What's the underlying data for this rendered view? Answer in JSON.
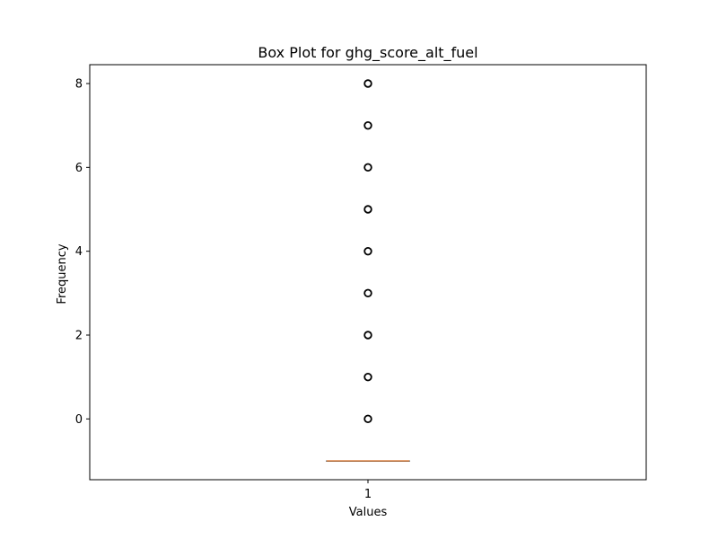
{
  "chart_data": {
    "type": "box",
    "title": "Box Plot for ghg_score_alt_fuel",
    "xlabel": "Values",
    "ylabel": "Frequency",
    "categories": [
      "1"
    ],
    "ylim": [
      -1.45,
      8.45
    ],
    "yticks": [
      0,
      2,
      4,
      6,
      8
    ],
    "ytick_labels": [
      "0",
      "2",
      "4",
      "6",
      "8"
    ],
    "box": {
      "q1": -1,
      "median": -1,
      "q3": -1,
      "whisker_low": -1,
      "whisker_high": -1
    },
    "outliers": [
      0,
      1,
      2,
      3,
      4,
      5,
      6,
      7,
      8
    ],
    "colors": {
      "median": "#e0894b",
      "box": "#000000",
      "outlier": "#000000"
    },
    "grid": false,
    "legend": "none"
  }
}
